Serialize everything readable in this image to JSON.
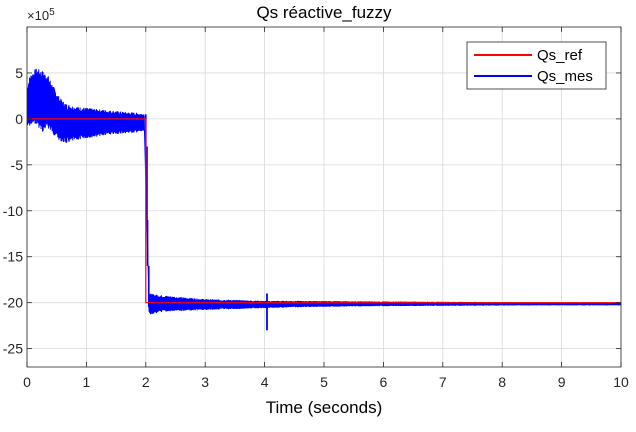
{
  "chart_data": {
    "type": "line",
    "title": "Qs réactive_fuzzy",
    "xlabel": "Time (seconds)",
    "ylabel": "",
    "exponent_label": "×10",
    "exponent_power": "5",
    "xlim": [
      0,
      10
    ],
    "ylim": [
      -27,
      10
    ],
    "xticks": [
      0,
      1,
      2,
      3,
      4,
      5,
      6,
      7,
      8,
      9,
      10
    ],
    "yticks": [
      5,
      0,
      -5,
      -10,
      -15,
      -20,
      -25
    ],
    "grid": true,
    "legend_position": "top-right",
    "series": [
      {
        "name": "Qs_ref",
        "color": "#ff0000",
        "points": [
          [
            0,
            0
          ],
          [
            2.0,
            0
          ],
          [
            2.0,
            -20.0
          ],
          [
            10,
            -20.0
          ]
        ]
      },
      {
        "name": "Qs_mes",
        "color": "#0000ff",
        "envelope": [
          {
            "x": 0.0,
            "min": -1.0,
            "max": 3.5
          },
          {
            "x": 0.05,
            "min": -0.8,
            "max": 4.8
          },
          {
            "x": 0.15,
            "min": -0.5,
            "max": 5.5
          },
          {
            "x": 0.25,
            "min": -1.5,
            "max": 5.3
          },
          {
            "x": 0.35,
            "min": -1.0,
            "max": 4.8
          },
          {
            "x": 0.45,
            "min": -1.8,
            "max": 3.5
          },
          {
            "x": 0.55,
            "min": -2.4,
            "max": 2.3
          },
          {
            "x": 0.65,
            "min": -2.7,
            "max": 1.7
          },
          {
            "x": 0.8,
            "min": -2.4,
            "max": 1.4
          },
          {
            "x": 1.0,
            "min": -2.1,
            "max": 1.2
          },
          {
            "x": 1.3,
            "min": -1.8,
            "max": 1.0
          },
          {
            "x": 1.6,
            "min": -1.6,
            "max": 0.8
          },
          {
            "x": 1.8,
            "min": -1.5,
            "max": 0.7
          },
          {
            "x": 1.98,
            "min": -1.4,
            "max": 0.6
          },
          {
            "x": 2.05,
            "min": -21.3,
            "max": -19.0
          },
          {
            "x": 2.3,
            "min": -21.0,
            "max": -19.2
          },
          {
            "x": 2.6,
            "min": -20.9,
            "max": -19.4
          },
          {
            "x": 3.0,
            "min": -20.8,
            "max": -19.6
          },
          {
            "x": 3.5,
            "min": -20.7,
            "max": -19.7
          },
          {
            "x": 4.0,
            "min": -20.6,
            "max": -19.8
          },
          {
            "x": 4.5,
            "min": -20.5,
            "max": -19.8
          },
          {
            "x": 5.5,
            "min": -20.4,
            "max": -19.85
          },
          {
            "x": 7.0,
            "min": -20.35,
            "max": -19.9
          },
          {
            "x": 8.5,
            "min": -20.3,
            "max": -19.95
          },
          {
            "x": 10.0,
            "min": -20.3,
            "max": -19.95
          }
        ],
        "transitions": [
          {
            "x": 2.0,
            "from": 0.5,
            "to": -3.0
          },
          {
            "x": 2.02,
            "from": -3.0,
            "to": -11.0
          },
          {
            "x": 2.03,
            "from": -11.0,
            "to": -16.0
          },
          {
            "x": 2.05,
            "from": -16.0,
            "to": -20.5
          }
        ],
        "spikes": [
          {
            "x": 4.04,
            "min": -23.0,
            "max": -19.0
          }
        ]
      }
    ]
  }
}
